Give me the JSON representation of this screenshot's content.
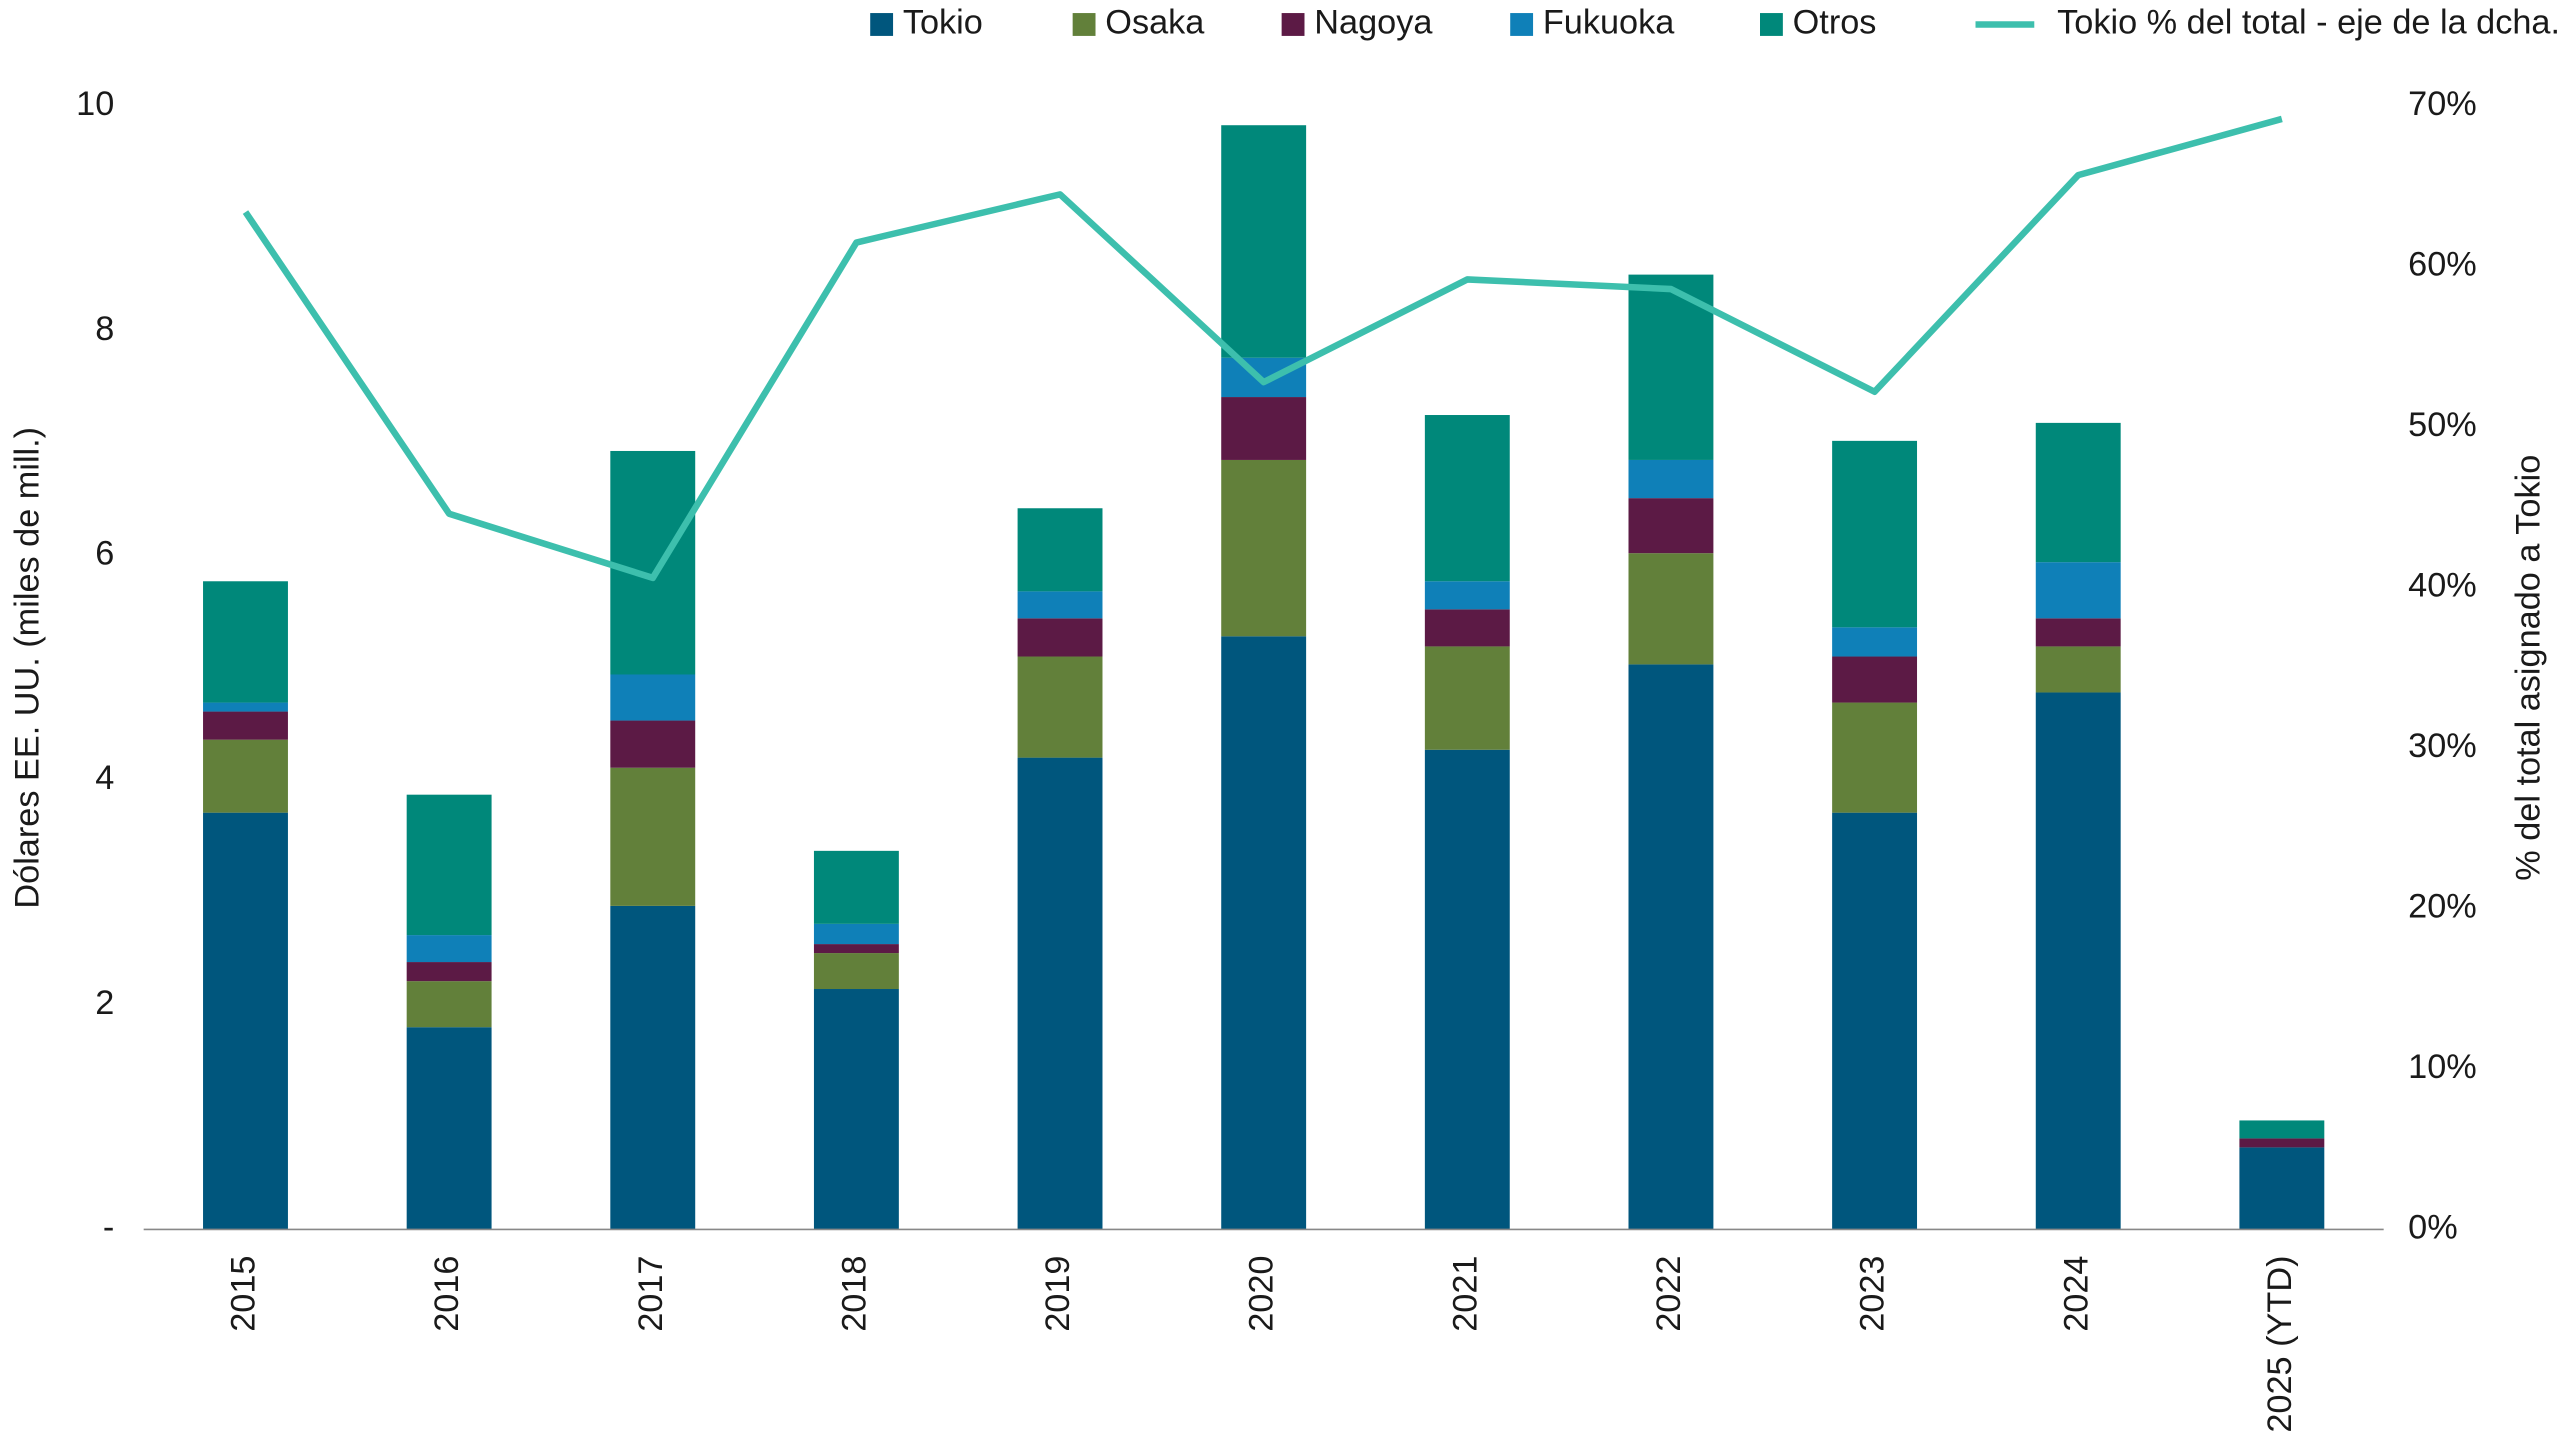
{
  "chart_data": {
    "type": "bar",
    "stacked": true,
    "categories": [
      "2015",
      "2016",
      "2017",
      "2018",
      "2019",
      "2020",
      "2021",
      "2022",
      "2023",
      "2024",
      "2025 (YTD)"
    ],
    "y_label": "Dólares EE. UU. (miles de mill.)",
    "y2_label": "% del total asignado a Tokio",
    "ylim": [
      0,
      10
    ],
    "yticks": [
      {
        "value": 0,
        "label": "-"
      },
      2,
      4,
      6,
      8,
      10
    ],
    "y2lim": [
      0,
      70
    ],
    "y2ticks": [
      {
        "value": 0,
        "label": "0%"
      },
      {
        "value": 10,
        "label": "10%"
      },
      {
        "value": 20,
        "label": "20%"
      },
      {
        "value": 30,
        "label": "30%"
      },
      {
        "value": 40,
        "label": "40%"
      },
      {
        "value": 50,
        "label": "50%"
      },
      {
        "value": 60,
        "label": "60%"
      },
      {
        "value": 70,
        "label": "70%"
      }
    ],
    "grid": false,
    "legend": "top",
    "series": [
      {
        "name": "Tokio",
        "color": "#00567d",
        "values": [
          3.71,
          1.8,
          2.88,
          2.14,
          4.2,
          5.28,
          4.27,
          5.03,
          3.71,
          4.78,
          0.73
        ]
      },
      {
        "name": "Osaka",
        "color": "#62803a",
        "values": [
          0.65,
          0.41,
          1.23,
          0.32,
          0.9,
          1.57,
          0.92,
          0.99,
          0.98,
          0.41,
          0.0
        ]
      },
      {
        "name": "Nagoya",
        "color": "#5c1a45",
        "values": [
          0.25,
          0.17,
          0.42,
          0.08,
          0.34,
          0.56,
          0.33,
          0.49,
          0.41,
          0.25,
          0.08
        ]
      },
      {
        "name": "Fukuoka",
        "color": "#0f80b8",
        "values": [
          0.08,
          0.24,
          0.41,
          0.18,
          0.24,
          0.35,
          0.25,
          0.34,
          0.26,
          0.5,
          0.0
        ]
      },
      {
        "name": "Otros",
        "color": "#00887a",
        "values": [
          1.08,
          1.25,
          1.99,
          0.65,
          0.74,
          2.07,
          1.48,
          1.65,
          1.66,
          1.24,
          0.16
        ]
      },
      {
        "name": "Tokio % del total - eje de la dcha.",
        "color": "#3dbfad",
        "type": "line",
        "axis": "y2",
        "values": [
          63.4,
          44.6,
          40.6,
          61.5,
          64.5,
          52.8,
          59.2,
          58.6,
          52.2,
          65.7,
          69.2
        ]
      }
    ]
  }
}
